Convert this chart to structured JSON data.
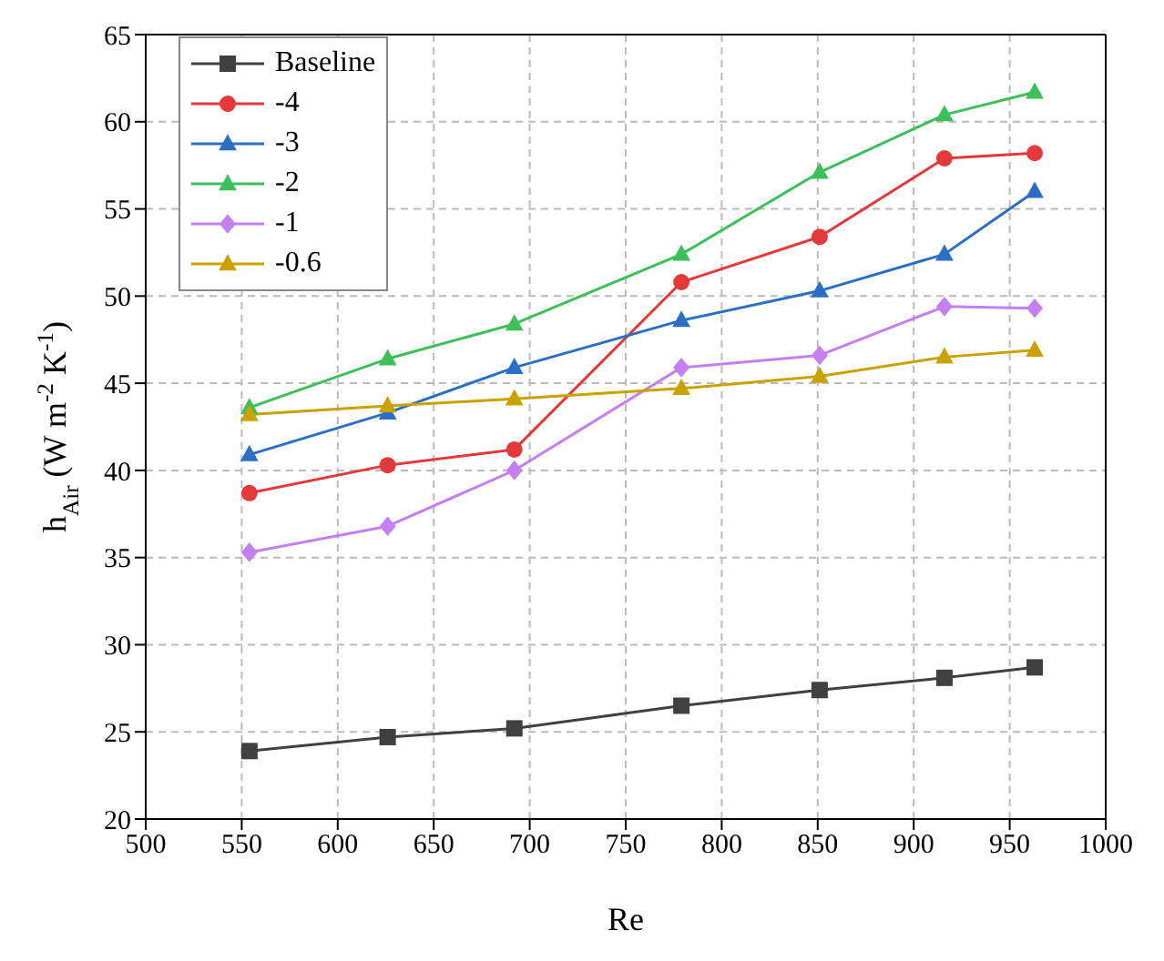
{
  "chart_data": {
    "type": "line",
    "xlabel": "Re",
    "ylabel": "h$_{Air}$ (W m$^{-2}$ K$^{-1}$)",
    "x": [
      554,
      626,
      692,
      779,
      851,
      916,
      963
    ],
    "series": [
      {
        "name": "Baseline",
        "color": "#404040",
        "marker": "square",
        "values": [
          23.9,
          24.7,
          25.2,
          26.5,
          27.4,
          28.1,
          28.7
        ]
      },
      {
        "name": "-4",
        "color": "#e3393a",
        "marker": "circle",
        "values": [
          38.7,
          40.3,
          41.2,
          50.8,
          53.4,
          57.9,
          58.2
        ]
      },
      {
        "name": "-3",
        "color": "#2b6fc4",
        "marker": "triangle",
        "values": [
          40.9,
          43.3,
          45.9,
          48.6,
          50.3,
          52.4,
          56.0
        ]
      },
      {
        "name": "-2",
        "color": "#3dbf5a",
        "marker": "triangle",
        "values": [
          43.6,
          46.4,
          48.4,
          52.4,
          57.1,
          60.4,
          61.7
        ]
      },
      {
        "name": "-1",
        "color": "#c57ff0",
        "marker": "diamond",
        "values": [
          35.3,
          36.8,
          40.0,
          45.9,
          46.6,
          49.4,
          49.3
        ]
      },
      {
        "name": "-0.6",
        "color": "#c9a100",
        "marker": "triangle",
        "values": [
          43.2,
          43.7,
          44.1,
          44.7,
          45.4,
          46.5,
          46.9
        ]
      }
    ],
    "xlim": [
      500,
      1000
    ],
    "xticks": [
      500,
      550,
      600,
      650,
      700,
      750,
      800,
      850,
      900,
      950,
      1000
    ],
    "ylim": [
      20,
      65
    ],
    "yticks": [
      20,
      25,
      30,
      35,
      40,
      45,
      50,
      55,
      60,
      65
    ],
    "grid": true,
    "legend": "top left",
    "line_style": "solid"
  }
}
